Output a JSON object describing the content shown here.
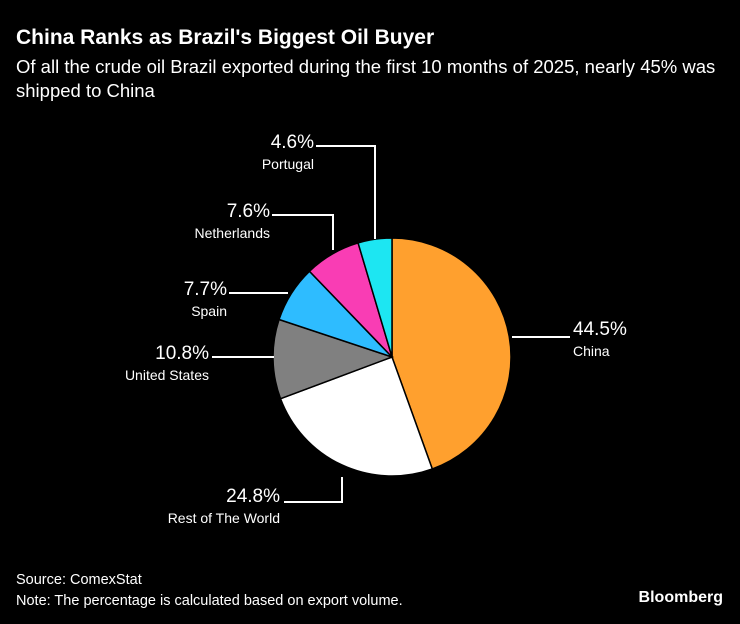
{
  "chart_data": {
    "type": "pie",
    "title": "China Ranks as Brazil's Biggest Oil Buyer",
    "subtitle": "Of all the crude oil Brazil exported during the first 10 months of 2025, nearly 45% was shipped to China",
    "slices": [
      {
        "label": "China",
        "value": 44.5,
        "display": "44.5%",
        "color": "#ffa02e"
      },
      {
        "label": "Rest of The World",
        "value": 24.8,
        "display": "24.8%",
        "color": "#ffffff"
      },
      {
        "label": "United States",
        "value": 10.8,
        "display": "10.8%",
        "color": "#808080"
      },
      {
        "label": "Spain",
        "value": 7.7,
        "display": "7.7%",
        "color": "#2ebcff"
      },
      {
        "label": "Netherlands",
        "value": 7.6,
        "display": "7.6%",
        "color": "#f93db4"
      },
      {
        "label": "Portugal",
        "value": 4.6,
        "display": "4.6%",
        "color": "#1de6f2"
      }
    ],
    "start": "top",
    "direction": "clockwise"
  },
  "footer": {
    "source": "Source: ComexStat",
    "note": "Note: The percentage is calculated based on export volume.",
    "logo": "Bloomberg"
  }
}
